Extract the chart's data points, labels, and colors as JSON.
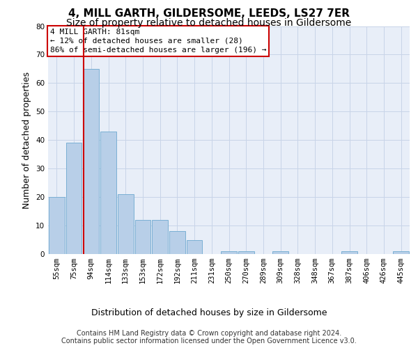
{
  "title1": "4, MILL GARTH, GILDERSOME, LEEDS, LS27 7ER",
  "title2": "Size of property relative to detached houses in Gildersome",
  "xlabel": "Distribution of detached houses by size in Gildersome",
  "ylabel": "Number of detached properties",
  "footer1": "Contains HM Land Registry data © Crown copyright and database right 2024.",
  "footer2": "Contains public sector information licensed under the Open Government Licence v3.0.",
  "annotation_line1": "4 MILL GARTH: 81sqm",
  "annotation_line2": "← 12% of detached houses are smaller (28)",
  "annotation_line3": "86% of semi-detached houses are larger (196) →",
  "bar_labels": [
    "55sqm",
    "75sqm",
    "94sqm",
    "114sqm",
    "133sqm",
    "153sqm",
    "172sqm",
    "192sqm",
    "211sqm",
    "231sqm",
    "250sqm",
    "270sqm",
    "289sqm",
    "309sqm",
    "328sqm",
    "348sqm",
    "367sqm",
    "387sqm",
    "406sqm",
    "426sqm",
    "445sqm"
  ],
  "bar_values": [
    20,
    39,
    65,
    43,
    21,
    12,
    12,
    8,
    5,
    0,
    1,
    1,
    0,
    1,
    0,
    0,
    0,
    1,
    0,
    0,
    1
  ],
  "bar_color": "#b8cfe8",
  "bar_edge_color": "#7aafd4",
  "vline_color": "#cc0000",
  "vline_x": 1.55,
  "ylim": [
    0,
    80
  ],
  "yticks": [
    0,
    10,
    20,
    30,
    40,
    50,
    60,
    70,
    80
  ],
  "grid_color": "#c8d4e8",
  "background_color": "#e8eef8",
  "box_color": "#cc0000",
  "title1_fontsize": 11,
  "title2_fontsize": 10,
  "axis_ylabel_fontsize": 9,
  "tick_fontsize": 7.5,
  "annotation_fontsize": 8,
  "xlabel_fontsize": 9,
  "footer_fontsize": 7
}
